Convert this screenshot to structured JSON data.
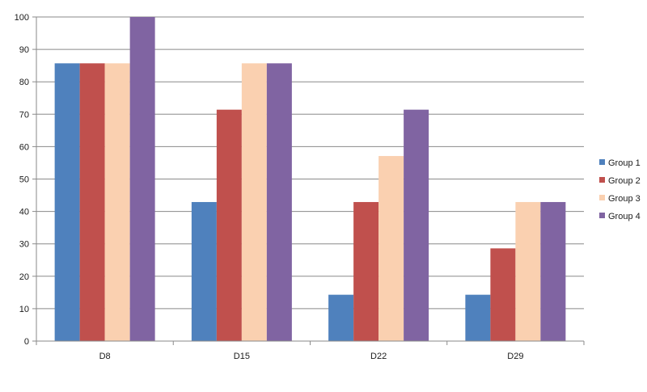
{
  "chart_data": {
    "type": "bar",
    "title": "",
    "xlabel": "",
    "ylabel": "",
    "categories": [
      "D8",
      "D15",
      "D22",
      "D29"
    ],
    "series": [
      {
        "name": "Group 1",
        "color": "#4f81bd",
        "values": [
          85.7,
          42.9,
          14.3,
          14.3
        ]
      },
      {
        "name": "Group 2",
        "color": "#c0504d",
        "values": [
          85.7,
          71.4,
          42.9,
          28.6
        ]
      },
      {
        "name": "Group 3",
        "color": "#fad0b0",
        "values": [
          85.7,
          85.7,
          57.1,
          42.9
        ]
      },
      {
        "name": "Group 4",
        "color": "#8064a2",
        "values": [
          100,
          85.7,
          71.4,
          42.9
        ]
      }
    ],
    "ylim": [
      0,
      100
    ],
    "yticks": [
      "0",
      "10",
      "20",
      "30",
      "40",
      "50",
      "60",
      "70",
      "80",
      "90",
      "100"
    ],
    "grid": true,
    "legend": "right"
  }
}
